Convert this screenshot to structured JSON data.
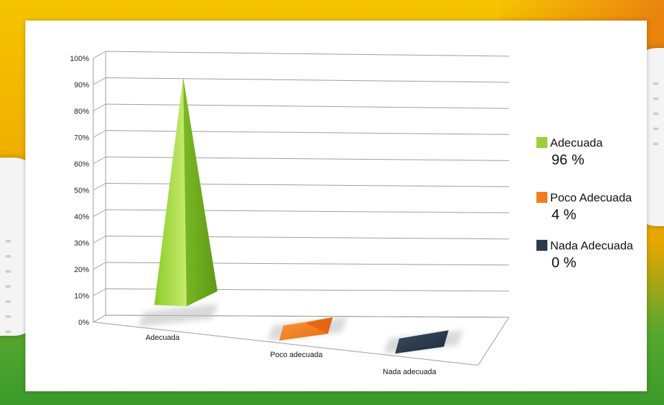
{
  "chart_data": {
    "type": "bar",
    "style": "3d-pyramid",
    "categories": [
      "Adecuada",
      "Poco adecuada",
      "Nada adecuada"
    ],
    "values": [
      96,
      4,
      0
    ],
    "colors": [
      "#9ad03a",
      "#f07e1a",
      "#2b3a4a"
    ],
    "ylim": [
      0,
      100
    ],
    "yticks": [
      "0%",
      "10%",
      "20%",
      "30%",
      "40%",
      "50%",
      "60%",
      "70%",
      "80%",
      "90%",
      "100%"
    ],
    "grid": true,
    "legend_position": "right",
    "legend": [
      {
        "label": "Adecuada",
        "value": "96 %",
        "color": "#9ad03a"
      },
      {
        "label": "Poco Adecuada",
        "value": "4 %",
        "color": "#f07e1a"
      },
      {
        "label": "Nada Adecuada",
        "value": "0 %",
        "color": "#2b3a4a"
      }
    ]
  }
}
